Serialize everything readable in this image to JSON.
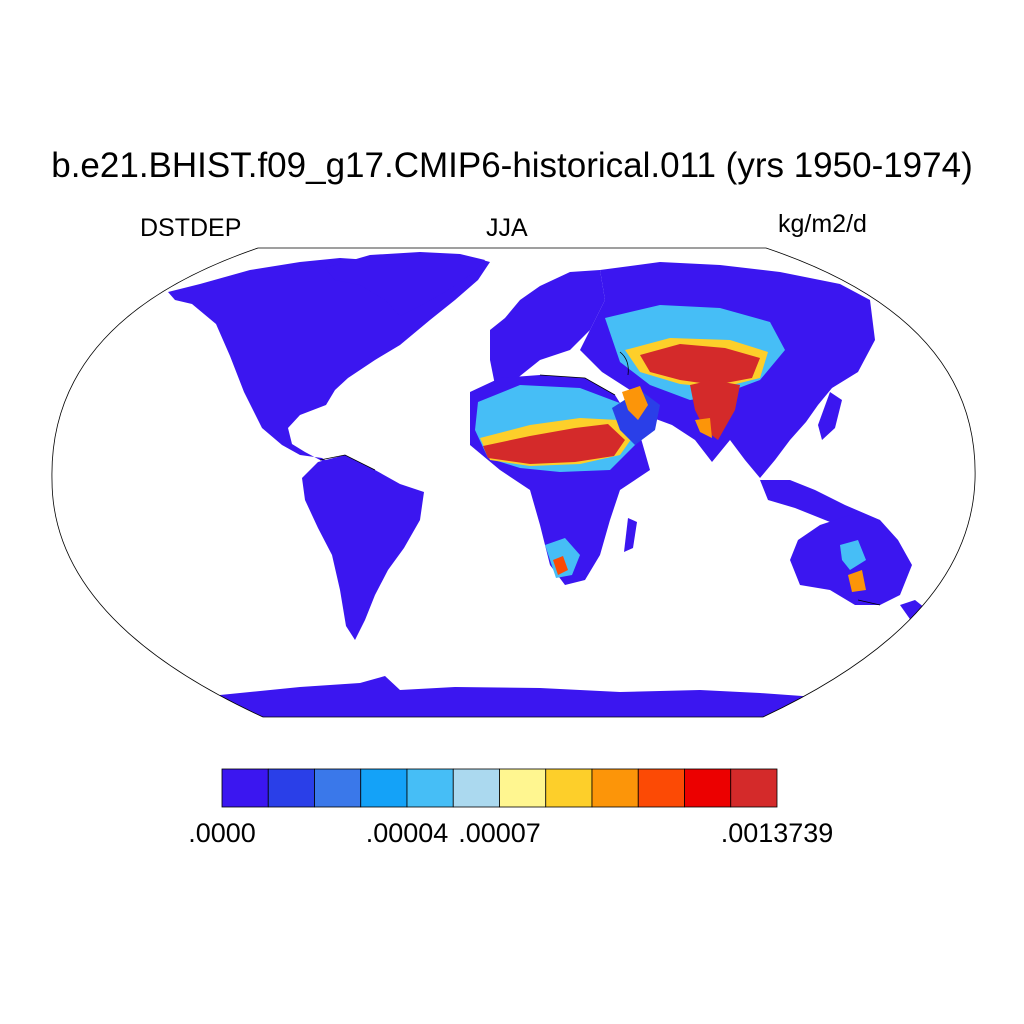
{
  "title": "b.e21.BHIST.f09_g17.CMIP6-historical.011 (yrs 1950-1974)",
  "left_label": "DSTDEP",
  "center_label": "JJA",
  "right_label": "kg/m2/d",
  "colors": {
    "low": "#3b16f0",
    "ocean": "#ffffff",
    "outline": "#000000"
  },
  "colorbar": {
    "colors": [
      "#3b16f0",
      "#2a3fe8",
      "#3a78ea",
      "#14a2f8",
      "#46bef6",
      "#abd9ef",
      "#fff690",
      "#fdcf2a",
      "#fc9509",
      "#fc4a05",
      "#ec0000",
      "#d42a2a"
    ],
    "labels": [
      {
        "text": ".0000",
        "index": 0
      },
      {
        "text": ".00004",
        "index": 4
      },
      {
        "text": ".00007",
        "index": 6
      },
      {
        "text": ".0013739",
        "index": 12
      }
    ]
  }
}
